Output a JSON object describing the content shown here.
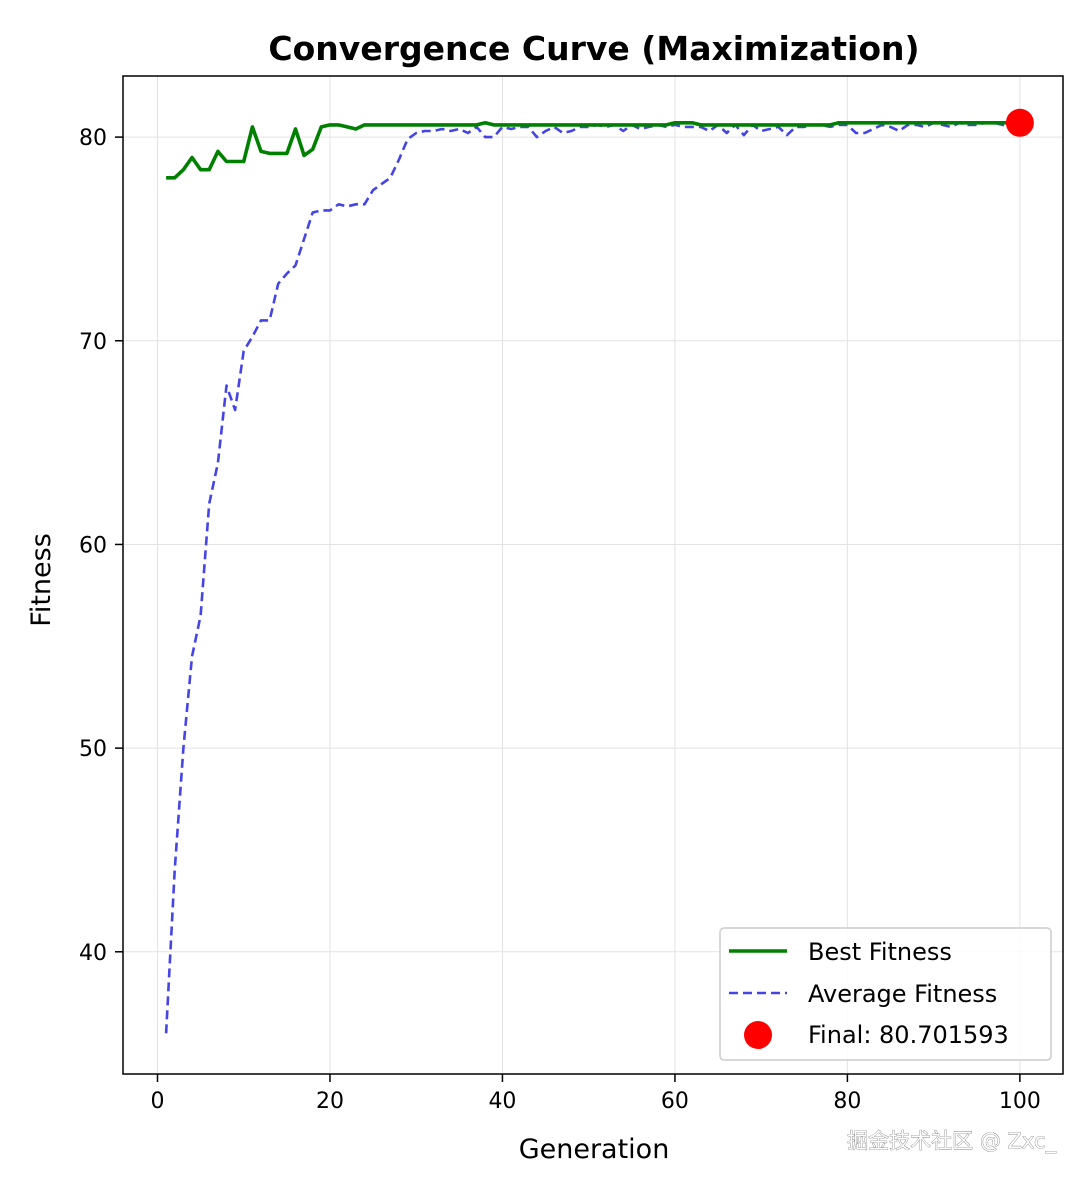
{
  "chart_data": {
    "type": "line",
    "title": "Convergence Curve (Maximization)",
    "xlabel": "Generation",
    "ylabel": "Fitness",
    "xlim": [
      -4,
      105
    ],
    "ylim": [
      34,
      83
    ],
    "xticks": [
      0,
      20,
      40,
      60,
      80,
      100
    ],
    "yticks": [
      40,
      50,
      60,
      70,
      80
    ],
    "grid": true,
    "legend_position": "lower-right",
    "x": [
      1,
      2,
      3,
      4,
      5,
      6,
      7,
      8,
      9,
      10,
      11,
      12,
      13,
      14,
      15,
      16,
      17,
      18,
      19,
      20,
      21,
      22,
      23,
      24,
      25,
      26,
      27,
      28,
      29,
      30,
      31,
      32,
      33,
      34,
      35,
      36,
      37,
      38,
      39,
      40,
      41,
      42,
      43,
      44,
      45,
      46,
      47,
      48,
      49,
      50,
      51,
      52,
      53,
      54,
      55,
      56,
      57,
      58,
      59,
      60,
      61,
      62,
      63,
      64,
      65,
      66,
      67,
      68,
      69,
      70,
      71,
      72,
      73,
      74,
      75,
      76,
      77,
      78,
      79,
      80,
      81,
      82,
      83,
      84,
      85,
      86,
      87,
      88,
      89,
      90,
      91,
      92,
      93,
      94,
      95,
      96,
      97,
      98,
      99,
      100
    ],
    "series": [
      {
        "name": "Best Fitness",
        "color": "#008000",
        "style": "solid",
        "values": [
          78.0,
          78.0,
          78.4,
          79.0,
          78.4,
          78.4,
          79.3,
          78.8,
          78.8,
          78.8,
          80.5,
          79.3,
          79.2,
          79.2,
          79.2,
          80.4,
          79.1,
          79.4,
          80.5,
          80.6,
          80.6,
          80.5,
          80.4,
          80.6,
          80.6,
          80.6,
          80.6,
          80.6,
          80.6,
          80.6,
          80.6,
          80.6,
          80.6,
          80.6,
          80.6,
          80.6,
          80.6,
          80.7,
          80.6,
          80.6,
          80.6,
          80.6,
          80.6,
          80.6,
          80.6,
          80.6,
          80.6,
          80.6,
          80.6,
          80.6,
          80.6,
          80.6,
          80.6,
          80.6,
          80.6,
          80.6,
          80.6,
          80.6,
          80.6,
          80.7,
          80.7,
          80.7,
          80.6,
          80.6,
          80.6,
          80.6,
          80.6,
          80.6,
          80.6,
          80.6,
          80.6,
          80.6,
          80.6,
          80.6,
          80.6,
          80.6,
          80.6,
          80.6,
          80.7,
          80.7,
          80.7,
          80.7,
          80.7,
          80.7,
          80.7,
          80.7,
          80.7,
          80.7,
          80.7,
          80.7,
          80.7,
          80.7,
          80.7,
          80.7,
          80.7,
          80.7,
          80.7,
          80.7,
          80.7,
          80.7
        ]
      },
      {
        "name": "Average Fitness",
        "color": "#4545e6",
        "style": "dashed",
        "values": [
          36.0,
          44.0,
          50.0,
          54.5,
          56.5,
          62.0,
          64.0,
          67.8,
          66.6,
          69.5,
          70.2,
          71.0,
          71.0,
          72.8,
          73.3,
          73.7,
          75.0,
          76.3,
          76.4,
          76.4,
          76.7,
          76.6,
          76.7,
          76.7,
          77.4,
          77.7,
          78.0,
          78.9,
          79.9,
          80.2,
          80.3,
          80.3,
          80.4,
          80.3,
          80.4,
          80.2,
          80.5,
          80.0,
          80.0,
          80.5,
          80.4,
          80.5,
          80.5,
          80.0,
          80.3,
          80.5,
          80.2,
          80.3,
          80.5,
          80.5,
          80.6,
          80.5,
          80.6,
          80.3,
          80.6,
          80.4,
          80.5,
          80.6,
          80.5,
          80.6,
          80.5,
          80.5,
          80.5,
          80.3,
          80.6,
          80.2,
          80.6,
          80.1,
          80.6,
          80.3,
          80.4,
          80.5,
          80.1,
          80.5,
          80.5,
          80.6,
          80.6,
          80.5,
          80.6,
          80.6,
          80.2,
          80.2,
          80.4,
          80.6,
          80.5,
          80.3,
          80.6,
          80.6,
          80.5,
          80.7,
          80.6,
          80.5,
          80.7,
          80.6,
          80.6,
          80.7,
          80.7,
          80.6,
          80.6,
          80.5
        ]
      }
    ],
    "final_point": {
      "label": "Final: 80.701593",
      "x": 100,
      "y": 80.701593,
      "color": "#ff0000"
    },
    "legend": [
      {
        "label": "Best Fitness",
        "color": "#008000",
        "kind": "solid-line"
      },
      {
        "label": "Average Fitness",
        "color": "#4545e6",
        "kind": "dashed-line"
      },
      {
        "label": "Final: 80.701593",
        "color": "#ff0000",
        "kind": "marker"
      }
    ]
  },
  "watermark": "掘金技术社区 @ Zxc_"
}
